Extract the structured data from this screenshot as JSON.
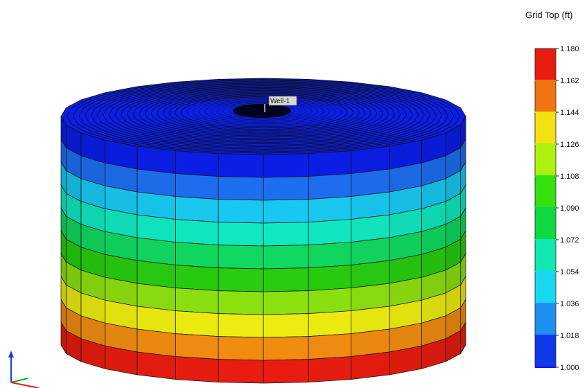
{
  "scene": {
    "well_label": "Well-1",
    "property": "Grid Top (ft)",
    "layer_colors": [
      "#0a1ee6",
      "#1e6ef0",
      "#18c8f0",
      "#10e8c0",
      "#10d860",
      "#28cc10",
      "#8ce010",
      "#ecec10",
      "#f08c10",
      "#e81c10"
    ],
    "top_color": "#0a1ee6",
    "edge_color": "#111111"
  },
  "legend": {
    "title": "Grid Top (ft)",
    "tick_labels": [
      "1.180",
      "1.162",
      "1.144",
      "1.126",
      "1.108",
      "1.090",
      "1.072",
      "1.054",
      "1.036",
      "1.018",
      "1.000"
    ],
    "colors": [
      "#e81c10",
      "#f07410",
      "#f2e210",
      "#aef010",
      "#34e010",
      "#10d840",
      "#10e8b0",
      "#18d8f0",
      "#1e90f0",
      "#1038e8",
      "#0a14e0"
    ]
  },
  "axes_triad": {
    "colors": [
      "#1a3cd8",
      "#10b020",
      "#e01818"
    ]
  }
}
